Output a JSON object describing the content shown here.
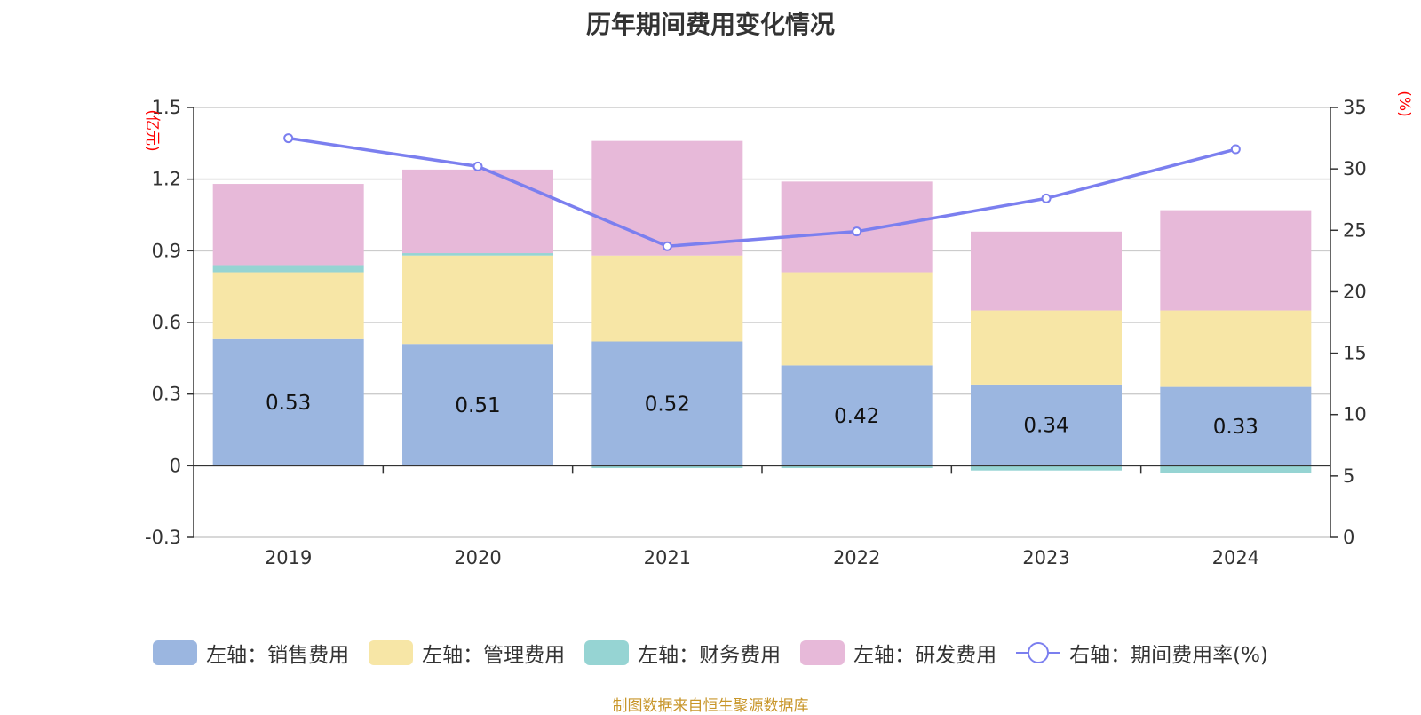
{
  "chart_data": {
    "type": "bar",
    "title": "历年期间费用变化情况",
    "source": "制图数据来自恒生聚源数据库",
    "categories": [
      "2019",
      "2020",
      "2021",
      "2022",
      "2023",
      "2024"
    ],
    "left_axis": {
      "unit": "(亿元)",
      "ylim": [
        -0.3,
        1.5
      ],
      "ticks": [
        "-0.3",
        "0",
        "0.3",
        "0.6",
        "0.9",
        "1.2",
        "1.5"
      ]
    },
    "right_axis": {
      "unit": "(%)",
      "ylim": [
        0,
        35
      ],
      "ticks": [
        "0",
        "5",
        "10",
        "15",
        "20",
        "25",
        "30",
        "35"
      ]
    },
    "series": [
      {
        "name": "左轴：销售费用",
        "type": "bar",
        "axis": "left",
        "color": "#9bb6e0",
        "values": [
          0.53,
          0.51,
          0.52,
          0.42,
          0.34,
          0.33
        ],
        "labels": [
          "0.53",
          "0.51",
          "0.52",
          "0.42",
          "0.34",
          "0.33"
        ]
      },
      {
        "name": "左轴：管理费用",
        "type": "bar",
        "axis": "left",
        "color": "#f7e6a6",
        "values": [
          0.28,
          0.37,
          0.36,
          0.39,
          0.31,
          0.32
        ]
      },
      {
        "name": "左轴：财务费用",
        "type": "bar",
        "axis": "left",
        "color": "#96d4d3",
        "values": [
          0.03,
          0.01,
          -0.01,
          -0.01,
          -0.02,
          -0.03
        ]
      },
      {
        "name": "左轴：研发费用",
        "type": "bar",
        "axis": "left",
        "color": "#e7b9d9",
        "values": [
          0.34,
          0.35,
          0.48,
          0.38,
          0.33,
          0.42
        ]
      },
      {
        "name": "右轴：期间费用率(%)",
        "type": "line",
        "axis": "right",
        "color": "#7b7fef",
        "values": [
          32.5,
          30.2,
          23.7,
          24.9,
          27.6,
          31.6
        ]
      }
    ],
    "grid": true,
    "legend_position": "bottom"
  }
}
